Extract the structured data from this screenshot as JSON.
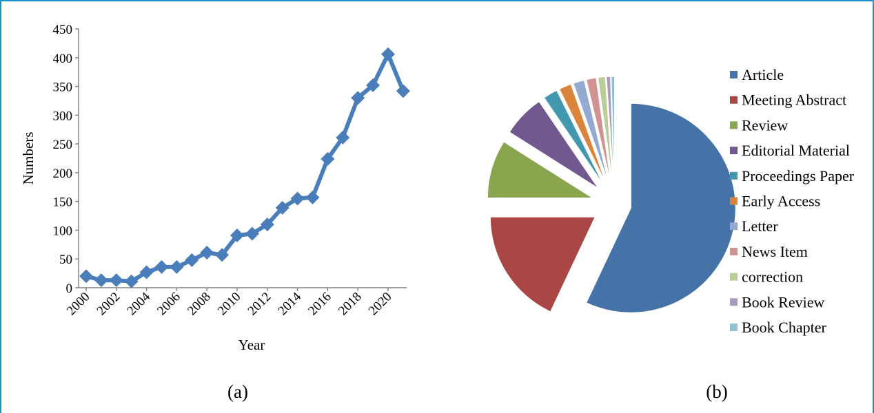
{
  "chart_data": [
    {
      "type": "line",
      "panel_label": "(a)",
      "xlabel": "Year",
      "ylabel": "Numbers",
      "ylim": [
        0,
        450
      ],
      "yticks": [
        0,
        50,
        100,
        150,
        200,
        250,
        300,
        350,
        400,
        450
      ],
      "x": [
        2000,
        2001,
        2002,
        2003,
        2004,
        2005,
        2006,
        2007,
        2008,
        2009,
        2010,
        2011,
        2012,
        2013,
        2014,
        2015,
        2016,
        2017,
        2018,
        2019,
        2020,
        2021
      ],
      "xtick_labels": [
        "2000",
        "2002",
        "2004",
        "2006",
        "2008",
        "2010",
        "2012",
        "2014",
        "2016",
        "2018",
        "2020"
      ],
      "series": [
        {
          "values": [
            20,
            13,
            13,
            11,
            27,
            36,
            36,
            48,
            61,
            57,
            91,
            94,
            110,
            139,
            155,
            157,
            224,
            261,
            330,
            352,
            406,
            342
          ],
          "color": "#4a7ebb",
          "marker": "diamond"
        }
      ],
      "grid": false
    },
    {
      "type": "pie",
      "panel_label": "(b)",
      "legend_position": "right",
      "exploded": true,
      "slices": [
        {
          "label": "Article",
          "value": 57.0,
          "color": "#4572a7"
        },
        {
          "label": "Meeting Abstract",
          "value": 18.0,
          "color": "#aa4643"
        },
        {
          "label": "Review",
          "value": 9.0,
          "color": "#89a54e"
        },
        {
          "label": "Editorial Material",
          "value": 6.5,
          "color": "#71588f"
        },
        {
          "label": "Proceedings Paper",
          "value": 2.2,
          "color": "#4198af"
        },
        {
          "label": "Early Access",
          "value": 1.9,
          "color": "#db843d"
        },
        {
          "label": "Letter",
          "value": 1.7,
          "color": "#93a9cf"
        },
        {
          "label": "News Item",
          "value": 1.5,
          "color": "#d19392"
        },
        {
          "label": "correction",
          "value": 1.1,
          "color": "#b9cd96"
        },
        {
          "label": "Book Review",
          "value": 0.6,
          "color": "#a99bbd"
        },
        {
          "label": "Book Chapter",
          "value": 0.5,
          "color": "#91c3d5"
        }
      ]
    }
  ]
}
